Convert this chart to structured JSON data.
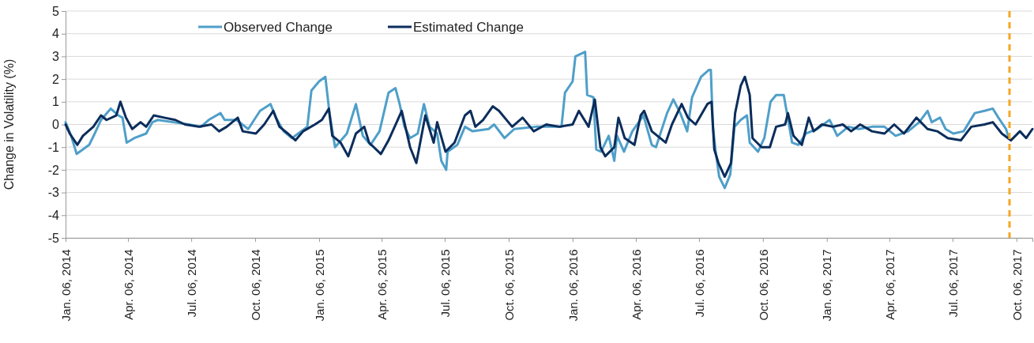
{
  "chart_data": {
    "type": "line",
    "ylabel": "Change in Volatility (%)",
    "xlim": [
      "2014-01-06",
      "2017-10-29"
    ],
    "ylim": [
      -5,
      5
    ],
    "yticks": [
      -5,
      -4,
      -3,
      -2,
      -1,
      0,
      1,
      2,
      3,
      4,
      5
    ],
    "xticks": [
      {
        "value": "2014-01-06",
        "label": "Jan. 06, 2014"
      },
      {
        "value": "2014-04-06",
        "label": "Apr. 06, 2014"
      },
      {
        "value": "2014-07-06",
        "label": "Jul. 06, 2014"
      },
      {
        "value": "2014-10-06",
        "label": "Oct. 06, 2014"
      },
      {
        "value": "2015-01-06",
        "label": "Jan. 06, 2015"
      },
      {
        "value": "2015-04-06",
        "label": "Apr. 06, 2015"
      },
      {
        "value": "2015-07-06",
        "label": "Jul. 06, 2015"
      },
      {
        "value": "2015-10-06",
        "label": "Oct. 06, 2015"
      },
      {
        "value": "2016-01-06",
        "label": "Jan. 06, 2016"
      },
      {
        "value": "2016-04-06",
        "label": "Apr. 06, 2016"
      },
      {
        "value": "2016-07-06",
        "label": "Jul. 06, 2016"
      },
      {
        "value": "2016-10-06",
        "label": "Oct. 06, 2016"
      },
      {
        "value": "2017-01-06",
        "label": "Jan. 06, 2017"
      },
      {
        "value": "2017-04-06",
        "label": "Apr. 06, 2017"
      },
      {
        "value": "2017-07-06",
        "label": "Jul. 06, 2017"
      },
      {
        "value": "2017-10-06",
        "label": "Oct. 06, 2017"
      }
    ],
    "grid": "y",
    "legend": "top",
    "line_style": "solid",
    "ref_lines": [
      {
        "axis": "x",
        "value": "2017-09-26",
        "color": "#f5a623",
        "line_style": "dashed"
      }
    ],
    "series": [
      {
        "name": "Observed Change",
        "color": "#4f9fc9",
        "x": [
          "2014-01-06",
          "2014-01-14",
          "2014-01-22",
          "2014-01-31",
          "2014-02-09",
          "2014-02-17",
          "2014-02-26",
          "2014-03-12",
          "2014-03-23",
          "2014-03-29",
          "2014-04-04",
          "2014-04-15",
          "2014-05-02",
          "2014-05-11",
          "2014-05-19",
          "2014-06-10",
          "2014-07-03",
          "2014-07-20",
          "2014-07-31",
          "2014-08-17",
          "2014-08-23",
          "2014-09-09",
          "2014-09-26",
          "2014-10-13",
          "2014-10-28",
          "2014-11-05",
          "2014-11-16",
          "2014-11-28",
          "2014-12-20",
          "2014-12-26",
          "2015-01-06",
          "2015-01-15",
          "2015-01-21",
          "2015-01-29",
          "2015-02-15",
          "2015-02-28",
          "2015-03-10",
          "2015-03-21",
          "2015-04-03",
          "2015-04-16",
          "2015-04-26",
          "2015-05-02",
          "2015-05-09",
          "2015-05-17",
          "2015-05-28",
          "2015-06-06",
          "2015-06-14",
          "2015-06-25",
          "2015-07-01",
          "2015-07-08",
          "2015-07-10",
          "2015-07-24",
          "2015-08-04",
          "2015-08-15",
          "2015-09-07",
          "2015-09-15",
          "2015-09-30",
          "2015-10-14",
          "2015-11-14",
          "2015-12-21",
          "2015-12-26",
          "2016-01-06",
          "2016-01-10",
          "2016-01-24",
          "2016-01-27",
          "2016-02-05",
          "2016-02-09",
          "2016-02-16",
          "2016-02-27",
          "2016-03-06",
          "2016-03-10",
          "2016-03-20",
          "2016-04-01",
          "2016-04-17",
          "2016-04-29",
          "2016-05-05",
          "2016-05-21",
          "2016-05-30",
          "2016-06-09",
          "2016-06-19",
          "2016-06-26",
          "2016-07-09",
          "2016-07-20",
          "2016-07-23",
          "2016-07-26",
          "2016-07-30",
          "2016-08-04",
          "2016-08-12",
          "2016-08-20",
          "2016-08-26",
          "2016-09-04",
          "2016-09-13",
          "2016-09-17",
          "2016-09-29",
          "2016-10-08",
          "2016-10-17",
          "2016-10-25",
          "2016-11-05",
          "2016-11-09",
          "2016-11-17",
          "2016-11-26",
          "2016-12-07",
          "2016-12-23",
          "2017-01-10",
          "2017-01-21",
          "2017-02-06",
          "2017-02-21",
          "2017-03-12",
          "2017-03-30",
          "2017-04-15",
          "2017-05-03",
          "2017-05-19",
          "2017-05-31",
          "2017-06-06",
          "2017-06-18",
          "2017-06-26",
          "2017-07-07",
          "2017-07-22",
          "2017-08-07",
          "2017-08-21",
          "2017-09-02",
          "2017-09-10",
          "2017-09-21",
          "2017-09-24"
        ],
        "values": [
          0.1,
          -0.5,
          -1.3,
          -1.1,
          -0.9,
          -0.4,
          0.2,
          0.7,
          0.4,
          0.3,
          -0.8,
          -0.6,
          -0.4,
          0.1,
          0.2,
          0.1,
          0.0,
          -0.1,
          0.2,
          0.5,
          0.2,
          0.2,
          -0.2,
          0.6,
          0.9,
          0.3,
          -0.3,
          -0.6,
          -0.1,
          1.5,
          1.9,
          2.1,
          0.5,
          -1.0,
          -0.4,
          0.9,
          -0.5,
          -0.9,
          -0.3,
          1.4,
          1.6,
          0.9,
          -0.1,
          -0.6,
          -0.4,
          0.9,
          -0.1,
          -0.4,
          -1.6,
          -2.0,
          -1.2,
          -0.9,
          -0.1,
          -0.3,
          -0.2,
          0.0,
          -0.6,
          -0.2,
          -0.1,
          -0.1,
          1.4,
          1.9,
          3.0,
          3.2,
          1.3,
          1.2,
          -1.1,
          -1.2,
          -0.5,
          -1.6,
          -0.5,
          -1.2,
          -0.3,
          0.4,
          -0.9,
          -1.0,
          0.5,
          1.1,
          0.5,
          -0.3,
          1.2,
          2.1,
          2.4,
          2.4,
          -0.1,
          -1.2,
          -2.3,
          -2.8,
          -2.2,
          -0.1,
          0.2,
          0.4,
          -0.8,
          -1.2,
          -0.6,
          1.0,
          1.3,
          1.3,
          0.6,
          -0.8,
          -0.9,
          -0.4,
          -0.2,
          0.2,
          -0.5,
          -0.1,
          -0.2,
          -0.1,
          -0.1,
          -0.5,
          -0.3,
          0.1,
          0.6,
          0.1,
          0.3,
          -0.2,
          -0.4,
          -0.3,
          0.5,
          0.6,
          0.7,
          0.3,
          -0.2,
          -0.5
        ]
      },
      {
        "name": "Estimated Change",
        "color": "#0b2d5b",
        "x": [
          "2014-01-06",
          "2014-01-12",
          "2014-01-23",
          "2014-01-31",
          "2014-02-15",
          "2014-02-26",
          "2014-03-06",
          "2014-03-20",
          "2014-03-26",
          "2014-04-03",
          "2014-04-12",
          "2014-04-24",
          "2014-05-02",
          "2014-05-13",
          "2014-05-28",
          "2014-06-13",
          "2014-06-27",
          "2014-07-17",
          "2014-08-04",
          "2014-08-15",
          "2014-08-26",
          "2014-09-11",
          "2014-09-18",
          "2014-10-07",
          "2014-10-19",
          "2014-11-01",
          "2014-11-10",
          "2014-11-22",
          "2014-12-03",
          "2014-12-14",
          "2014-12-31",
          "2015-01-10",
          "2015-01-20",
          "2015-01-25",
          "2015-02-06",
          "2015-02-17",
          "2015-02-28",
          "2015-03-12",
          "2015-03-19",
          "2015-04-05",
          "2015-04-16",
          "2015-05-05",
          "2015-05-17",
          "2015-05-26",
          "2015-06-08",
          "2015-06-20",
          "2015-06-25",
          "2015-07-07",
          "2015-07-20",
          "2015-08-04",
          "2015-08-12",
          "2015-08-19",
          "2015-08-30",
          "2015-09-13",
          "2015-09-22",
          "2015-10-11",
          "2015-10-26",
          "2015-11-11",
          "2015-11-29",
          "2015-12-18",
          "2016-01-06",
          "2016-01-15",
          "2016-01-29",
          "2016-02-07",
          "2016-02-15",
          "2016-02-22",
          "2016-03-06",
          "2016-03-12",
          "2016-03-21",
          "2016-04-04",
          "2016-04-13",
          "2016-04-18",
          "2016-04-29",
          "2016-05-19",
          "2016-05-28",
          "2016-06-11",
          "2016-06-20",
          "2016-07-01",
          "2016-07-18",
          "2016-07-24",
          "2016-07-28",
          "2016-08-03",
          "2016-08-12",
          "2016-08-21",
          "2016-08-27",
          "2016-09-04",
          "2016-09-10",
          "2016-09-17",
          "2016-09-21",
          "2016-10-04",
          "2016-10-16",
          "2016-10-25",
          "2016-11-07",
          "2016-11-11",
          "2016-11-19",
          "2016-12-01",
          "2016-12-11",
          "2016-12-18",
          "2016-12-30",
          "2017-01-15",
          "2017-01-29",
          "2017-02-10",
          "2017-02-23",
          "2017-03-12",
          "2017-03-30",
          "2017-04-13",
          "2017-04-27",
          "2017-05-15",
          "2017-05-31",
          "2017-06-14",
          "2017-06-29",
          "2017-07-18",
          "2017-08-02",
          "2017-08-21",
          "2017-09-02",
          "2017-09-15",
          "2017-09-28",
          "2017-10-11",
          "2017-10-20",
          "2017-10-29"
        ],
        "values": [
          0.0,
          -0.4,
          -0.9,
          -0.5,
          -0.1,
          0.4,
          0.2,
          0.4,
          1.0,
          0.3,
          -0.2,
          0.1,
          -0.1,
          0.4,
          0.3,
          0.2,
          0.0,
          -0.1,
          0.0,
          -0.3,
          -0.1,
          0.3,
          -0.3,
          -0.4,
          0.0,
          0.6,
          -0.1,
          -0.4,
          -0.7,
          -0.3,
          0.0,
          0.2,
          0.7,
          -0.5,
          -0.8,
          -1.4,
          -0.4,
          -0.1,
          -0.8,
          -1.3,
          -0.7,
          0.6,
          -1.0,
          -1.7,
          0.4,
          -0.8,
          0.1,
          -1.2,
          -0.8,
          0.4,
          0.6,
          -0.1,
          0.2,
          0.8,
          0.6,
          -0.1,
          0.3,
          -0.3,
          0.0,
          -0.1,
          0.0,
          0.6,
          -0.1,
          1.1,
          -1.0,
          -1.4,
          -1.0,
          0.3,
          -0.6,
          -0.9,
          0.4,
          0.6,
          -0.3,
          -0.8,
          0.0,
          0.9,
          0.3,
          0.0,
          0.9,
          1.0,
          -1.1,
          -1.7,
          -2.3,
          -1.7,
          0.5,
          1.7,
          2.1,
          1.3,
          -0.6,
          -1.0,
          -1.0,
          -0.1,
          0.0,
          0.5,
          -0.5,
          -0.9,
          0.3,
          -0.3,
          0.0,
          -0.1,
          0.0,
          -0.3,
          0.0,
          -0.3,
          -0.4,
          0.0,
          -0.4,
          0.3,
          -0.2,
          -0.3,
          -0.6,
          -0.7,
          -0.1,
          0.0,
          0.1,
          -0.4,
          -0.7,
          -0.3,
          -0.6,
          -0.2
        ]
      }
    ]
  }
}
